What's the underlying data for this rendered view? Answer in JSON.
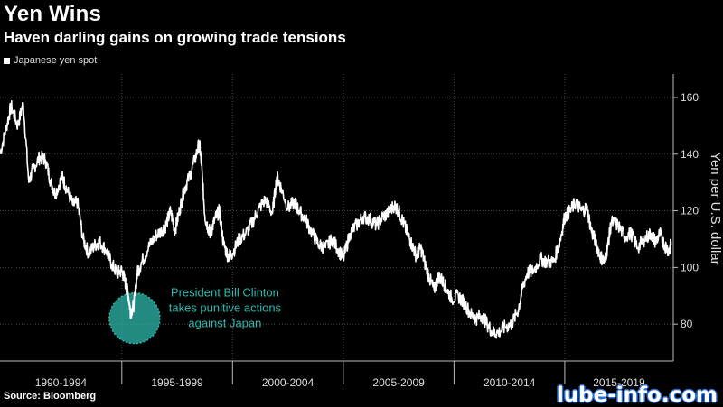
{
  "header": {
    "title": "Yen Wins",
    "subtitle": "Haven darling gains on growing trade tensions"
  },
  "footer": {
    "source": "Source: Bloomberg",
    "watermark": "lube-info.com"
  },
  "colors": {
    "background": "#000000",
    "line": "#ffffff",
    "annotation": "#2fb8ad",
    "grid": "#555555"
  },
  "chart_data": {
    "type": "line",
    "title": "Yen Wins",
    "subtitle": "Haven darling gains on growing trade tensions",
    "xlabel": "",
    "ylabel": "Yen per U.S. dollar",
    "ylim": [
      67,
      167
    ],
    "xlim": [
      1989.5,
      2019.9
    ],
    "y_ticks": [
      80,
      100,
      120,
      140,
      160
    ],
    "x_periods": [
      {
        "label": "1990-1994",
        "start": 1989.5,
        "end": 1995.0
      },
      {
        "label": "1995-1999",
        "start": 1995.0,
        "end": 2000.0
      },
      {
        "label": "2000-2004",
        "start": 2000.0,
        "end": 2005.0
      },
      {
        "label": "2005-2009",
        "start": 2005.0,
        "end": 2010.0
      },
      {
        "label": "2010-2014",
        "start": 2010.0,
        "end": 2015.0
      },
      {
        "label": "2015-2019",
        "start": 2015.0,
        "end": 2019.9
      }
    ],
    "grid": true,
    "legend": "top-left",
    "series": [
      {
        "name": "Japanese yen spot",
        "x": [
          1989.5,
          1989.8,
          1990.0,
          1990.3,
          1990.55,
          1990.8,
          1991.0,
          1991.3,
          1991.55,
          1991.8,
          1992.0,
          1992.3,
          1992.5,
          1992.8,
          1993.0,
          1993.25,
          1993.5,
          1993.8,
          1994.0,
          1994.3,
          1994.55,
          1994.8,
          1995.0,
          1995.15,
          1995.3,
          1995.4,
          1995.55,
          1995.7,
          1995.9,
          1996.2,
          1996.5,
          1996.8,
          1997.0,
          1997.2,
          1997.4,
          1997.6,
          1997.8,
          1998.0,
          1998.3,
          1998.5,
          1998.6,
          1998.75,
          1998.9,
          1999.0,
          1999.2,
          1999.4,
          1999.6,
          1999.8,
          2000.0,
          2000.3,
          2000.6,
          2000.9,
          2001.2,
          2001.5,
          2001.8,
          2002.0,
          2002.2,
          2002.5,
          2002.8,
          2003.0,
          2003.3,
          2003.6,
          2003.9,
          2004.2,
          2004.5,
          2004.8,
          2005.0,
          2005.3,
          2005.6,
          2005.9,
          2006.2,
          2006.5,
          2006.8,
          2007.0,
          2007.3,
          2007.5,
          2007.7,
          2007.9,
          2008.1,
          2008.3,
          2008.5,
          2008.7,
          2008.9,
          2009.1,
          2009.3,
          2009.5,
          2009.7,
          2009.9,
          2010.2,
          2010.5,
          2010.8,
          2011.0,
          2011.25,
          2011.5,
          2011.75,
          2012.0,
          2012.3,
          2012.6,
          2012.9,
          2013.1,
          2013.3,
          2013.6,
          2013.9,
          2014.2,
          2014.5,
          2014.8,
          2015.0,
          2015.25,
          2015.5,
          2015.75,
          2016.0,
          2016.2,
          2016.4,
          2016.6,
          2016.8,
          2016.95,
          2017.1,
          2017.4,
          2017.7,
          2018.0,
          2018.3,
          2018.6,
          2018.9,
          2019.1,
          2019.3,
          2019.5,
          2019.7,
          2019.8
        ],
        "values": [
          140,
          150,
          157,
          150,
          158,
          130,
          135,
          139,
          138,
          130,
          126,
          132,
          128,
          122,
          123,
          110,
          105,
          108,
          109,
          106,
          101,
          98,
          99,
          95,
          90,
          84,
          87,
          98,
          102,
          107,
          111,
          113,
          115,
          120,
          113,
          120,
          127,
          131,
          138,
          144,
          136,
          118,
          114,
          112,
          117,
          120,
          108,
          104,
          105,
          110,
          112,
          116,
          121,
          124,
          119,
          132,
          128,
          121,
          123,
          120,
          117,
          112,
          108,
          107,
          110,
          106,
          103,
          112,
          115,
          118,
          117,
          115,
          118,
          119,
          122,
          120,
          116,
          112,
          108,
          104,
          107,
          101,
          96,
          92,
          97,
          95,
          92,
          89,
          90,
          87,
          83,
          82,
          83,
          80,
          77,
          77,
          79,
          80,
          85,
          93,
          98,
          99,
          103,
          102,
          102,
          110,
          118,
          120,
          123,
          120,
          121,
          113,
          109,
          104,
          102,
          108,
          116,
          115,
          111,
          112,
          107,
          110,
          112,
          109,
          112,
          108,
          106,
          108
        ]
      }
    ],
    "annotations": [
      {
        "text_lines": [
          "President Bill Clinton",
          "takes punitive actions",
          "against Japan"
        ],
        "x": 1995.25,
        "y": 84
      }
    ]
  }
}
